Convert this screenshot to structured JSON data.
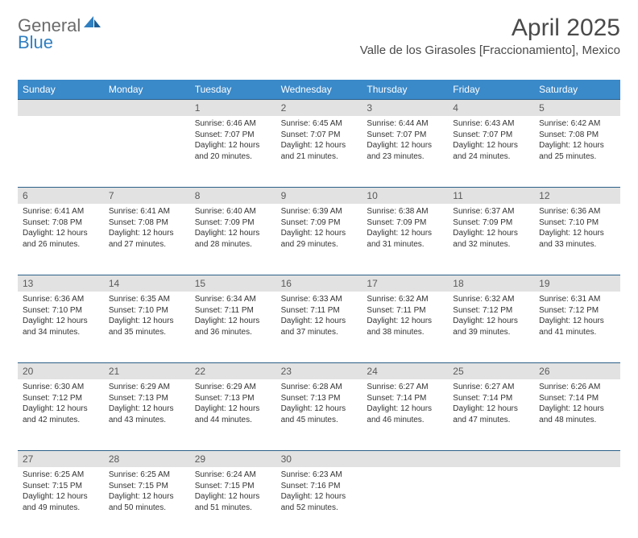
{
  "brand": {
    "general": "General",
    "blue": "Blue"
  },
  "title": {
    "month_year": "April 2025",
    "location": "Valle de los Girasoles [Fraccionamiento], Mexico"
  },
  "colors": {
    "header_bg": "#3a89c9",
    "daynum_bg": "#e2e2e2",
    "divider": "#2b5f88",
    "logo_gray": "#6b6b6b",
    "logo_blue": "#2f7fc1"
  },
  "weekdays": [
    "Sunday",
    "Monday",
    "Tuesday",
    "Wednesday",
    "Thursday",
    "Friday",
    "Saturday"
  ],
  "weeks": [
    {
      "nums": [
        "",
        "",
        "1",
        "2",
        "3",
        "4",
        "5"
      ],
      "cells": [
        null,
        null,
        {
          "sunrise": "Sunrise: 6:46 AM",
          "sunset": "Sunset: 7:07 PM",
          "daylight": "Daylight: 12 hours and 20 minutes."
        },
        {
          "sunrise": "Sunrise: 6:45 AM",
          "sunset": "Sunset: 7:07 PM",
          "daylight": "Daylight: 12 hours and 21 minutes."
        },
        {
          "sunrise": "Sunrise: 6:44 AM",
          "sunset": "Sunset: 7:07 PM",
          "daylight": "Daylight: 12 hours and 23 minutes."
        },
        {
          "sunrise": "Sunrise: 6:43 AM",
          "sunset": "Sunset: 7:07 PM",
          "daylight": "Daylight: 12 hours and 24 minutes."
        },
        {
          "sunrise": "Sunrise: 6:42 AM",
          "sunset": "Sunset: 7:08 PM",
          "daylight": "Daylight: 12 hours and 25 minutes."
        }
      ]
    },
    {
      "nums": [
        "6",
        "7",
        "8",
        "9",
        "10",
        "11",
        "12"
      ],
      "cells": [
        {
          "sunrise": "Sunrise: 6:41 AM",
          "sunset": "Sunset: 7:08 PM",
          "daylight": "Daylight: 12 hours and 26 minutes."
        },
        {
          "sunrise": "Sunrise: 6:41 AM",
          "sunset": "Sunset: 7:08 PM",
          "daylight": "Daylight: 12 hours and 27 minutes."
        },
        {
          "sunrise": "Sunrise: 6:40 AM",
          "sunset": "Sunset: 7:09 PM",
          "daylight": "Daylight: 12 hours and 28 minutes."
        },
        {
          "sunrise": "Sunrise: 6:39 AM",
          "sunset": "Sunset: 7:09 PM",
          "daylight": "Daylight: 12 hours and 29 minutes."
        },
        {
          "sunrise": "Sunrise: 6:38 AM",
          "sunset": "Sunset: 7:09 PM",
          "daylight": "Daylight: 12 hours and 31 minutes."
        },
        {
          "sunrise": "Sunrise: 6:37 AM",
          "sunset": "Sunset: 7:09 PM",
          "daylight": "Daylight: 12 hours and 32 minutes."
        },
        {
          "sunrise": "Sunrise: 6:36 AM",
          "sunset": "Sunset: 7:10 PM",
          "daylight": "Daylight: 12 hours and 33 minutes."
        }
      ]
    },
    {
      "nums": [
        "13",
        "14",
        "15",
        "16",
        "17",
        "18",
        "19"
      ],
      "cells": [
        {
          "sunrise": "Sunrise: 6:36 AM",
          "sunset": "Sunset: 7:10 PM",
          "daylight": "Daylight: 12 hours and 34 minutes."
        },
        {
          "sunrise": "Sunrise: 6:35 AM",
          "sunset": "Sunset: 7:10 PM",
          "daylight": "Daylight: 12 hours and 35 minutes."
        },
        {
          "sunrise": "Sunrise: 6:34 AM",
          "sunset": "Sunset: 7:11 PM",
          "daylight": "Daylight: 12 hours and 36 minutes."
        },
        {
          "sunrise": "Sunrise: 6:33 AM",
          "sunset": "Sunset: 7:11 PM",
          "daylight": "Daylight: 12 hours and 37 minutes."
        },
        {
          "sunrise": "Sunrise: 6:32 AM",
          "sunset": "Sunset: 7:11 PM",
          "daylight": "Daylight: 12 hours and 38 minutes."
        },
        {
          "sunrise": "Sunrise: 6:32 AM",
          "sunset": "Sunset: 7:12 PM",
          "daylight": "Daylight: 12 hours and 39 minutes."
        },
        {
          "sunrise": "Sunrise: 6:31 AM",
          "sunset": "Sunset: 7:12 PM",
          "daylight": "Daylight: 12 hours and 41 minutes."
        }
      ]
    },
    {
      "nums": [
        "20",
        "21",
        "22",
        "23",
        "24",
        "25",
        "26"
      ],
      "cells": [
        {
          "sunrise": "Sunrise: 6:30 AM",
          "sunset": "Sunset: 7:12 PM",
          "daylight": "Daylight: 12 hours and 42 minutes."
        },
        {
          "sunrise": "Sunrise: 6:29 AM",
          "sunset": "Sunset: 7:13 PM",
          "daylight": "Daylight: 12 hours and 43 minutes."
        },
        {
          "sunrise": "Sunrise: 6:29 AM",
          "sunset": "Sunset: 7:13 PM",
          "daylight": "Daylight: 12 hours and 44 minutes."
        },
        {
          "sunrise": "Sunrise: 6:28 AM",
          "sunset": "Sunset: 7:13 PM",
          "daylight": "Daylight: 12 hours and 45 minutes."
        },
        {
          "sunrise": "Sunrise: 6:27 AM",
          "sunset": "Sunset: 7:14 PM",
          "daylight": "Daylight: 12 hours and 46 minutes."
        },
        {
          "sunrise": "Sunrise: 6:27 AM",
          "sunset": "Sunset: 7:14 PM",
          "daylight": "Daylight: 12 hours and 47 minutes."
        },
        {
          "sunrise": "Sunrise: 6:26 AM",
          "sunset": "Sunset: 7:14 PM",
          "daylight": "Daylight: 12 hours and 48 minutes."
        }
      ]
    },
    {
      "nums": [
        "27",
        "28",
        "29",
        "30",
        "",
        "",
        ""
      ],
      "cells": [
        {
          "sunrise": "Sunrise: 6:25 AM",
          "sunset": "Sunset: 7:15 PM",
          "daylight": "Daylight: 12 hours and 49 minutes."
        },
        {
          "sunrise": "Sunrise: 6:25 AM",
          "sunset": "Sunset: 7:15 PM",
          "daylight": "Daylight: 12 hours and 50 minutes."
        },
        {
          "sunrise": "Sunrise: 6:24 AM",
          "sunset": "Sunset: 7:15 PM",
          "daylight": "Daylight: 12 hours and 51 minutes."
        },
        {
          "sunrise": "Sunrise: 6:23 AM",
          "sunset": "Sunset: 7:16 PM",
          "daylight": "Daylight: 12 hours and 52 minutes."
        },
        null,
        null,
        null
      ]
    }
  ]
}
